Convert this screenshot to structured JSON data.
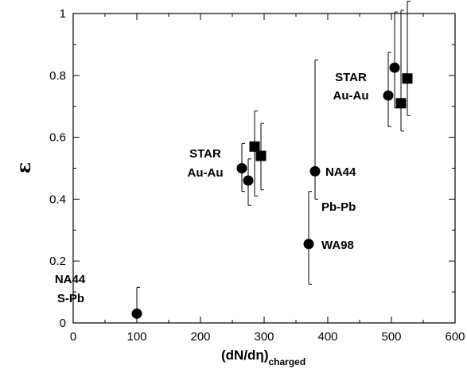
{
  "chart_data": {
    "type": "scatter",
    "xlabel": "(dN/dη)",
    "xlabel_subscript": "charged",
    "ylabel": "ε",
    "xlim": [
      0,
      600
    ],
    "ylim": [
      0,
      1
    ],
    "xticks": [
      0,
      100,
      200,
      300,
      400,
      500,
      600
    ],
    "yticks": [
      0,
      0.2,
      0.4,
      0.6,
      0.8,
      1
    ],
    "xtick_labels": [
      "0",
      "100",
      "200",
      "300",
      "400",
      "500",
      "600"
    ],
    "ytick_labels": [
      "0",
      "0.2",
      "0.4",
      "0.6",
      "0.8",
      "1"
    ],
    "grid": false,
    "series": [
      {
        "marker": "circle",
        "points": [
          {
            "x": 100,
            "y": 0.03,
            "err_low": 0.03,
            "err_high": 0.085
          },
          {
            "x": 265,
            "y": 0.5,
            "err_low": 0.075,
            "err_high": 0.08
          },
          {
            "x": 275,
            "y": 0.46,
            "err_low": 0.08,
            "err_high": 0.07
          },
          {
            "x": 370,
            "y": 0.255,
            "err_low": 0.13,
            "err_high": 0.17
          },
          {
            "x": 380,
            "y": 0.49,
            "err_low": 0.09,
            "err_high": 0.36
          },
          {
            "x": 495,
            "y": 0.735,
            "err_low": 0.1,
            "err_high": 0.14
          },
          {
            "x": 505,
            "y": 0.825,
            "err_low": 0.13,
            "err_high": 0.18
          }
        ]
      },
      {
        "marker": "square",
        "points": [
          {
            "x": 285,
            "y": 0.57,
            "err_low": 0.16,
            "err_high": 0.115
          },
          {
            "x": 295,
            "y": 0.54,
            "err_low": 0.11,
            "err_high": 0.105
          },
          {
            "x": 515,
            "y": 0.71,
            "err_low": 0.09,
            "err_high": 0.3
          },
          {
            "x": 525,
            "y": 0.79,
            "err_low": 0.12,
            "err_high": 0.25
          }
        ]
      }
    ]
  },
  "annotations": {
    "na44_spb_line1": "NA44",
    "na44_spb_line2": "S-Pb",
    "star_mid_line1": "STAR",
    "star_mid_line2": "Au-Au",
    "na44_pbpb": "NA44",
    "pbpb": "Pb-Pb",
    "wa98": "WA98",
    "star_top_line1": "STAR",
    "star_top_line2": "Au-Au"
  }
}
